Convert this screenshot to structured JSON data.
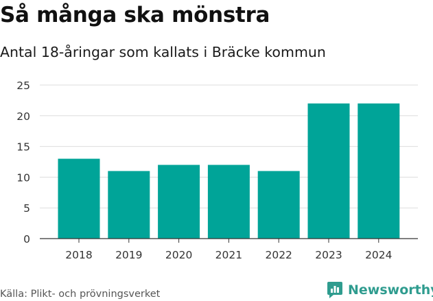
{
  "header": {
    "title": "Så många ska mönstra",
    "subtitle": "Antal 18-åringar som kallats i Bräcke kommun"
  },
  "footer": {
    "source": "Källa: Plikt- och prövningsverket",
    "brand": "Newsworthy"
  },
  "colors": {
    "bar": "#00a498",
    "grid": "#dddddd",
    "axis": "#333333",
    "brand": "#2f9c8f"
  },
  "chart_data": {
    "type": "bar",
    "title": "Så många ska mönstra",
    "subtitle": "Antal 18-åringar som kallats i Bräcke kommun",
    "categories": [
      "2018",
      "2019",
      "2020",
      "2021",
      "2022",
      "2023",
      "2024"
    ],
    "values": [
      13,
      11,
      12,
      12,
      11,
      22,
      22
    ],
    "xlabel": "",
    "ylabel": "",
    "ylim": [
      0,
      25
    ],
    "yticks": [
      "0",
      "5",
      "10",
      "15",
      "20",
      "25"
    ],
    "grid": true,
    "legend": "none"
  }
}
